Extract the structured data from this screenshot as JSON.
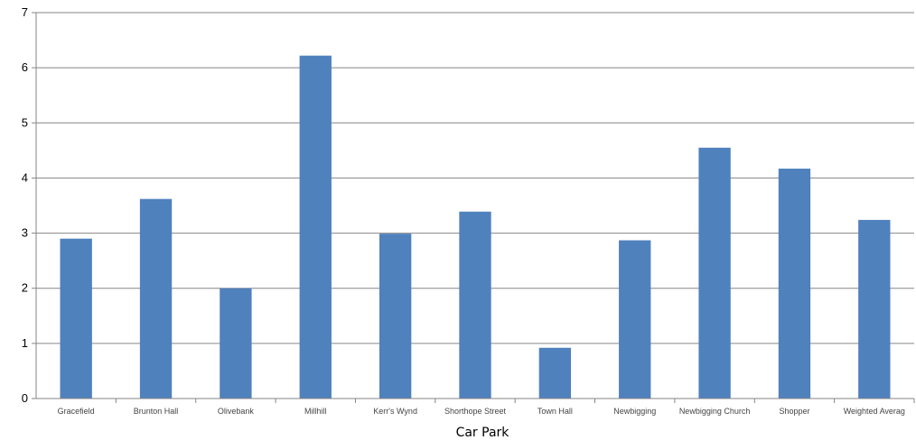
{
  "chart_data": {
    "type": "bar",
    "categories": [
      "Gracefield",
      "Brunton Hall",
      "Olivebank",
      "Millhill",
      "Kerr's Wynd",
      "Shorthope Street",
      "Town Hall",
      "Newbigging",
      "Newbigging Church",
      "Shopper",
      "Weighted Averag"
    ],
    "values": [
      2.9,
      3.62,
      2.0,
      6.22,
      2.99,
      3.39,
      0.92,
      2.87,
      4.55,
      4.17,
      3.24
    ],
    "title": "",
    "xlabel": "Car Park",
    "ylabel": "",
    "ylim": [
      0,
      7
    ],
    "yticks": [
      0,
      1,
      2,
      3,
      4,
      5,
      6,
      7
    ],
    "grid": true,
    "legend": "none",
    "bar_color": "#4f81bd"
  }
}
